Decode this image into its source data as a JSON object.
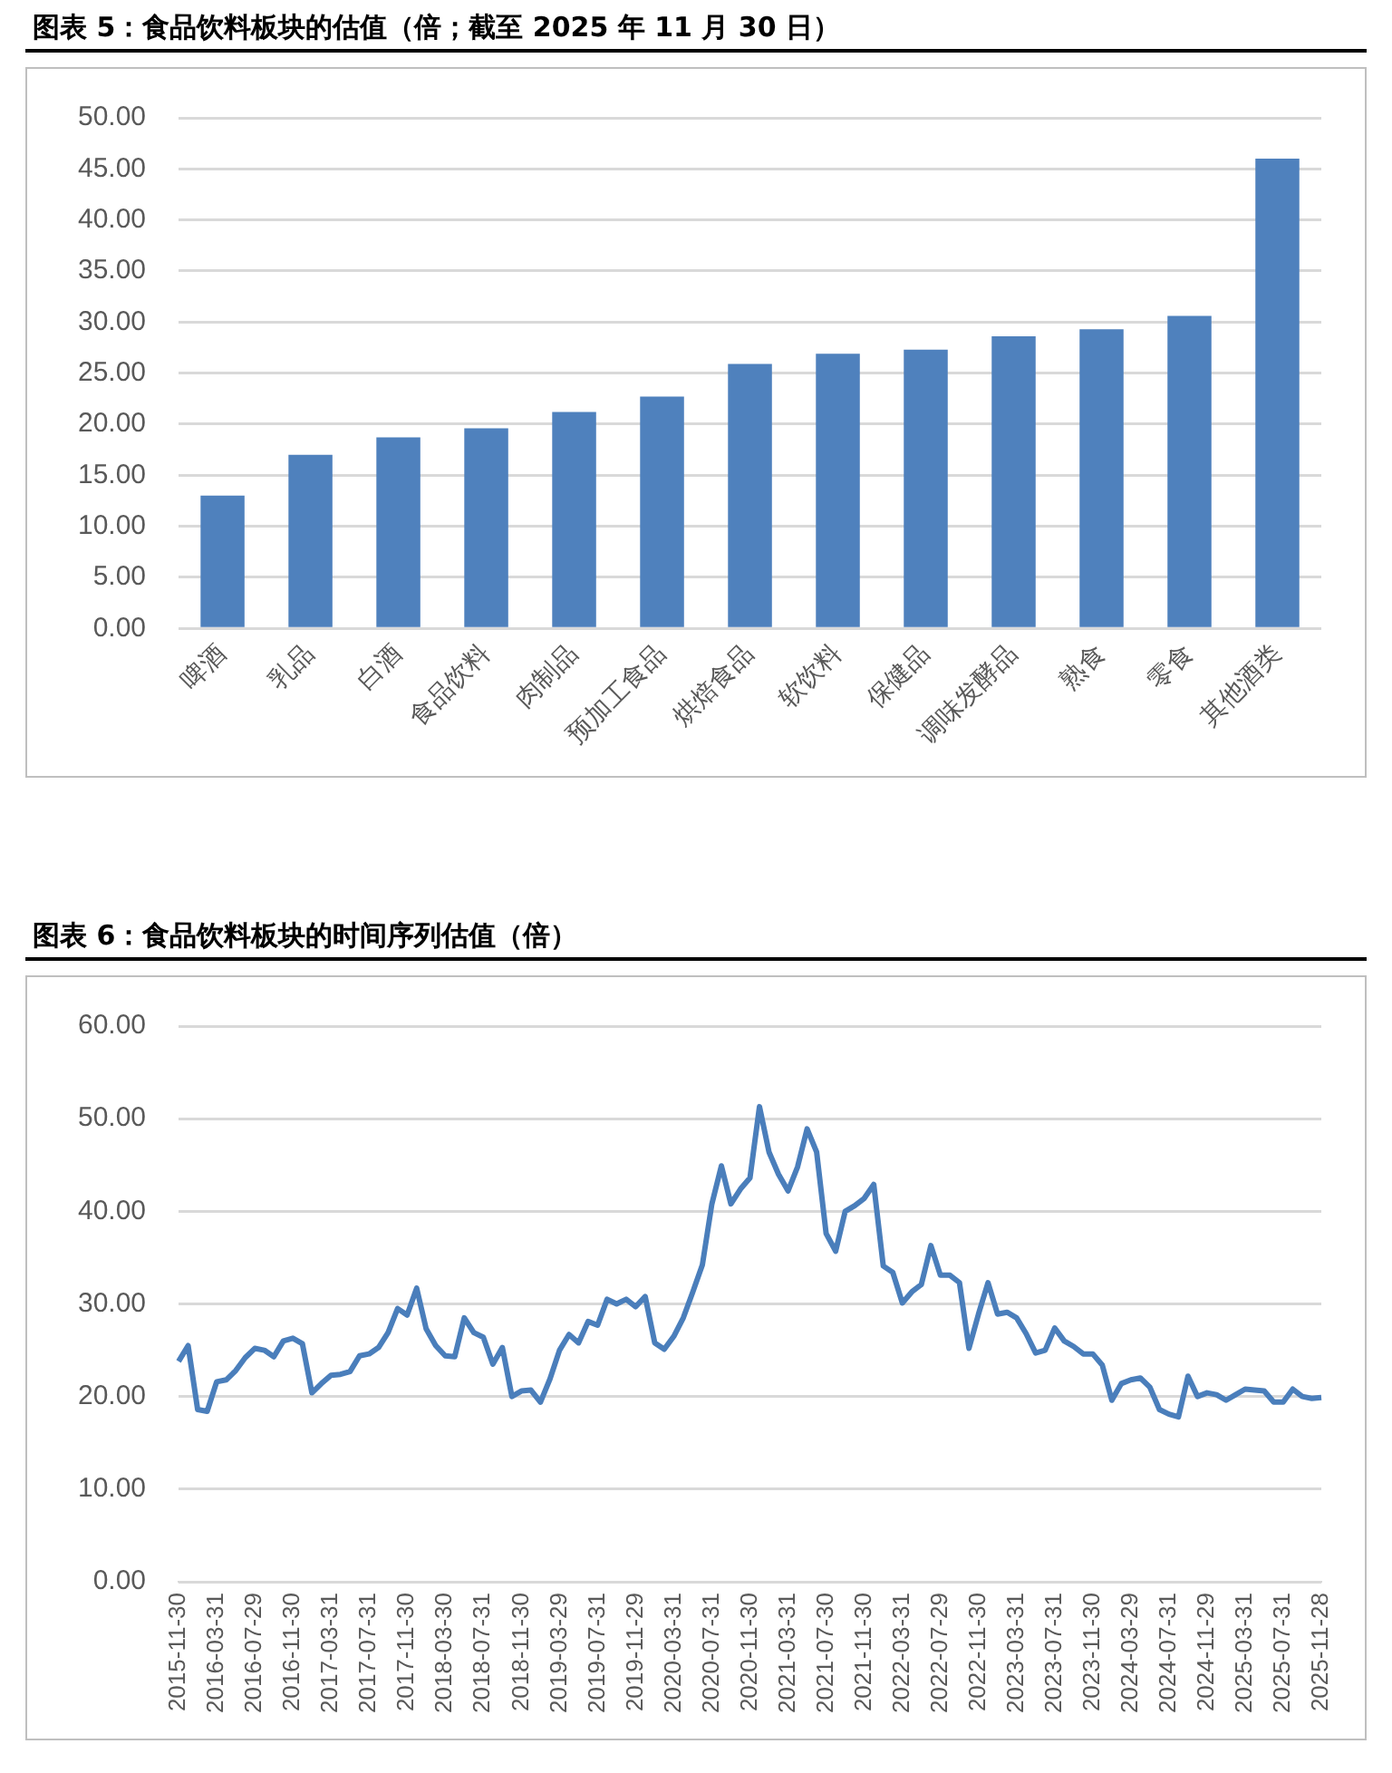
{
  "chart_data": [
    {
      "type": "bar",
      "title": "图表 5：食品饮料板块的估值（倍；截至 2025 年 11 月 30 日）",
      "categories": [
        "啤酒",
        "乳品",
        "白酒",
        "食品饮料",
        "肉制品",
        "预加工食品",
        "烘焙食品",
        "软饮料",
        "保健品",
        "调味发酵品",
        "熟食",
        "零食",
        "其他酒类"
      ],
      "values": [
        13.0,
        17.0,
        18.7,
        19.6,
        21.2,
        22.7,
        25.9,
        26.9,
        27.3,
        28.6,
        29.3,
        30.6,
        46.0
      ],
      "color": "#4f81bd",
      "ylim": [
        0,
        50
      ],
      "yticks": [
        {
          "value": 0,
          "label": "0.00"
        },
        {
          "value": 5,
          "label": "5.00"
        },
        {
          "value": 10,
          "label": "10.00"
        },
        {
          "value": 15,
          "label": "15.00"
        },
        {
          "value": 20,
          "label": "20.00"
        },
        {
          "value": 25,
          "label": "25.00"
        },
        {
          "value": 30,
          "label": "30.00"
        },
        {
          "value": 35,
          "label": "35.00"
        },
        {
          "value": 40,
          "label": "40.00"
        },
        {
          "value": 45,
          "label": "45.00"
        },
        {
          "value": 50,
          "label": "50.00"
        }
      ],
      "grid": "y",
      "legend": false
    },
    {
      "type": "line",
      "title": "图表 6：食品饮料板块的时间序列估值（倍）",
      "categories": [
        "2015-11-30",
        null,
        null,
        null,
        "2016-03-31",
        null,
        null,
        null,
        "2016-07-29",
        null,
        null,
        null,
        "2016-11-30",
        null,
        null,
        null,
        "2017-03-31",
        null,
        null,
        null,
        "2017-07-31",
        null,
        null,
        null,
        "2017-11-30",
        null,
        null,
        null,
        "2018-03-30",
        null,
        null,
        null,
        "2018-07-31",
        null,
        null,
        null,
        "2018-11-30",
        null,
        null,
        null,
        "2019-03-29",
        null,
        null,
        null,
        "2019-07-31",
        null,
        null,
        null,
        "2019-11-29",
        null,
        null,
        null,
        "2020-03-31",
        null,
        null,
        null,
        "2020-07-31",
        null,
        null,
        null,
        "2020-11-30",
        null,
        null,
        null,
        "2021-03-31",
        null,
        null,
        null,
        "2021-07-30",
        null,
        null,
        null,
        "2021-11-30",
        null,
        null,
        null,
        "2022-03-31",
        null,
        null,
        null,
        "2022-07-29",
        null,
        null,
        null,
        "2022-11-30",
        null,
        null,
        null,
        "2023-03-31",
        null,
        null,
        null,
        "2023-07-31",
        null,
        null,
        null,
        "2023-11-30",
        null,
        null,
        null,
        "2024-03-29",
        null,
        null,
        null,
        "2024-07-31",
        null,
        null,
        null,
        "2024-11-29",
        null,
        null,
        null,
        "2025-03-31",
        null,
        null,
        null,
        "2025-07-31",
        null,
        null,
        null,
        "2025-11-28"
      ],
      "values": [
        23.8,
        25.5,
        18.6,
        18.4,
        21.6,
        21.8,
        22.8,
        24.2,
        25.2,
        25.0,
        24.3,
        26.0,
        26.3,
        25.7,
        20.4,
        21.4,
        22.3,
        22.4,
        22.7,
        24.4,
        24.6,
        25.3,
        26.9,
        29.5,
        28.8,
        31.7,
        27.3,
        25.5,
        24.4,
        24.3,
        28.5,
        26.9,
        26.4,
        23.5,
        25.3,
        20.0,
        20.6,
        20.7,
        19.4,
        21.9,
        25.0,
        26.7,
        25.8,
        28.1,
        27.7,
        30.5,
        30.0,
        30.5,
        29.7,
        30.8,
        25.8,
        25.1,
        26.5,
        28.5,
        31.3,
        34.2,
        40.8,
        44.9,
        40.8,
        42.4,
        43.6,
        51.3,
        46.4,
        44.0,
        42.2,
        44.8,
        48.9,
        46.4,
        37.6,
        35.7,
        40.0,
        40.6,
        41.4,
        42.9,
        34.1,
        33.4,
        30.1,
        31.3,
        32.1,
        36.3,
        33.1,
        33.1,
        32.3,
        25.2,
        28.9,
        32.3,
        28.9,
        29.1,
        28.5,
        26.8,
        24.7,
        25.0,
        27.4,
        26.0,
        25.4,
        24.6,
        24.6,
        23.4,
        19.6,
        21.4,
        21.8,
        22.0,
        21.0,
        18.6,
        18.1,
        17.8,
        22.2,
        20.0,
        20.4,
        20.2,
        19.6,
        20.2,
        20.8,
        20.7,
        20.6,
        19.4,
        19.4,
        20.8,
        20.0,
        19.8,
        19.9
      ],
      "color": "#4a7ebb",
      "ylim": [
        0,
        60
      ],
      "yticks": [
        {
          "value": 0,
          "label": "0.00"
        },
        {
          "value": 10,
          "label": "10.00"
        },
        {
          "value": 20,
          "label": "20.00"
        },
        {
          "value": 30,
          "label": "30.00"
        },
        {
          "value": 40,
          "label": "40.00"
        },
        {
          "value": 50,
          "label": "50.00"
        },
        {
          "value": 60,
          "label": "60.00"
        }
      ],
      "grid": "y",
      "legend": false,
      "marker": "none",
      "line_style": "solid"
    }
  ]
}
